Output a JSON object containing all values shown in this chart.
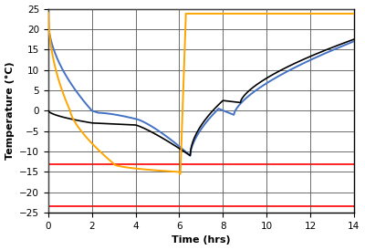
{
  "title": "",
  "xlabel": "Time (hrs)",
  "ylabel": "Temperature (°C)",
  "xlim": [
    0,
    14
  ],
  "ylim": [
    -25,
    25
  ],
  "xticks": [
    0,
    2,
    4,
    6,
    8,
    10,
    12,
    14
  ],
  "yticks": [
    -25,
    -20,
    -15,
    -10,
    -5,
    0,
    5,
    10,
    15,
    20,
    25
  ],
  "red_line1_y": -13.0,
  "red_line2_y": -23.5,
  "orange_color": "#FFA500",
  "blue_color": "#4472C4",
  "black_color": "#000000",
  "red_color": "#FF0000",
  "bg_color": "#FFFFFF"
}
